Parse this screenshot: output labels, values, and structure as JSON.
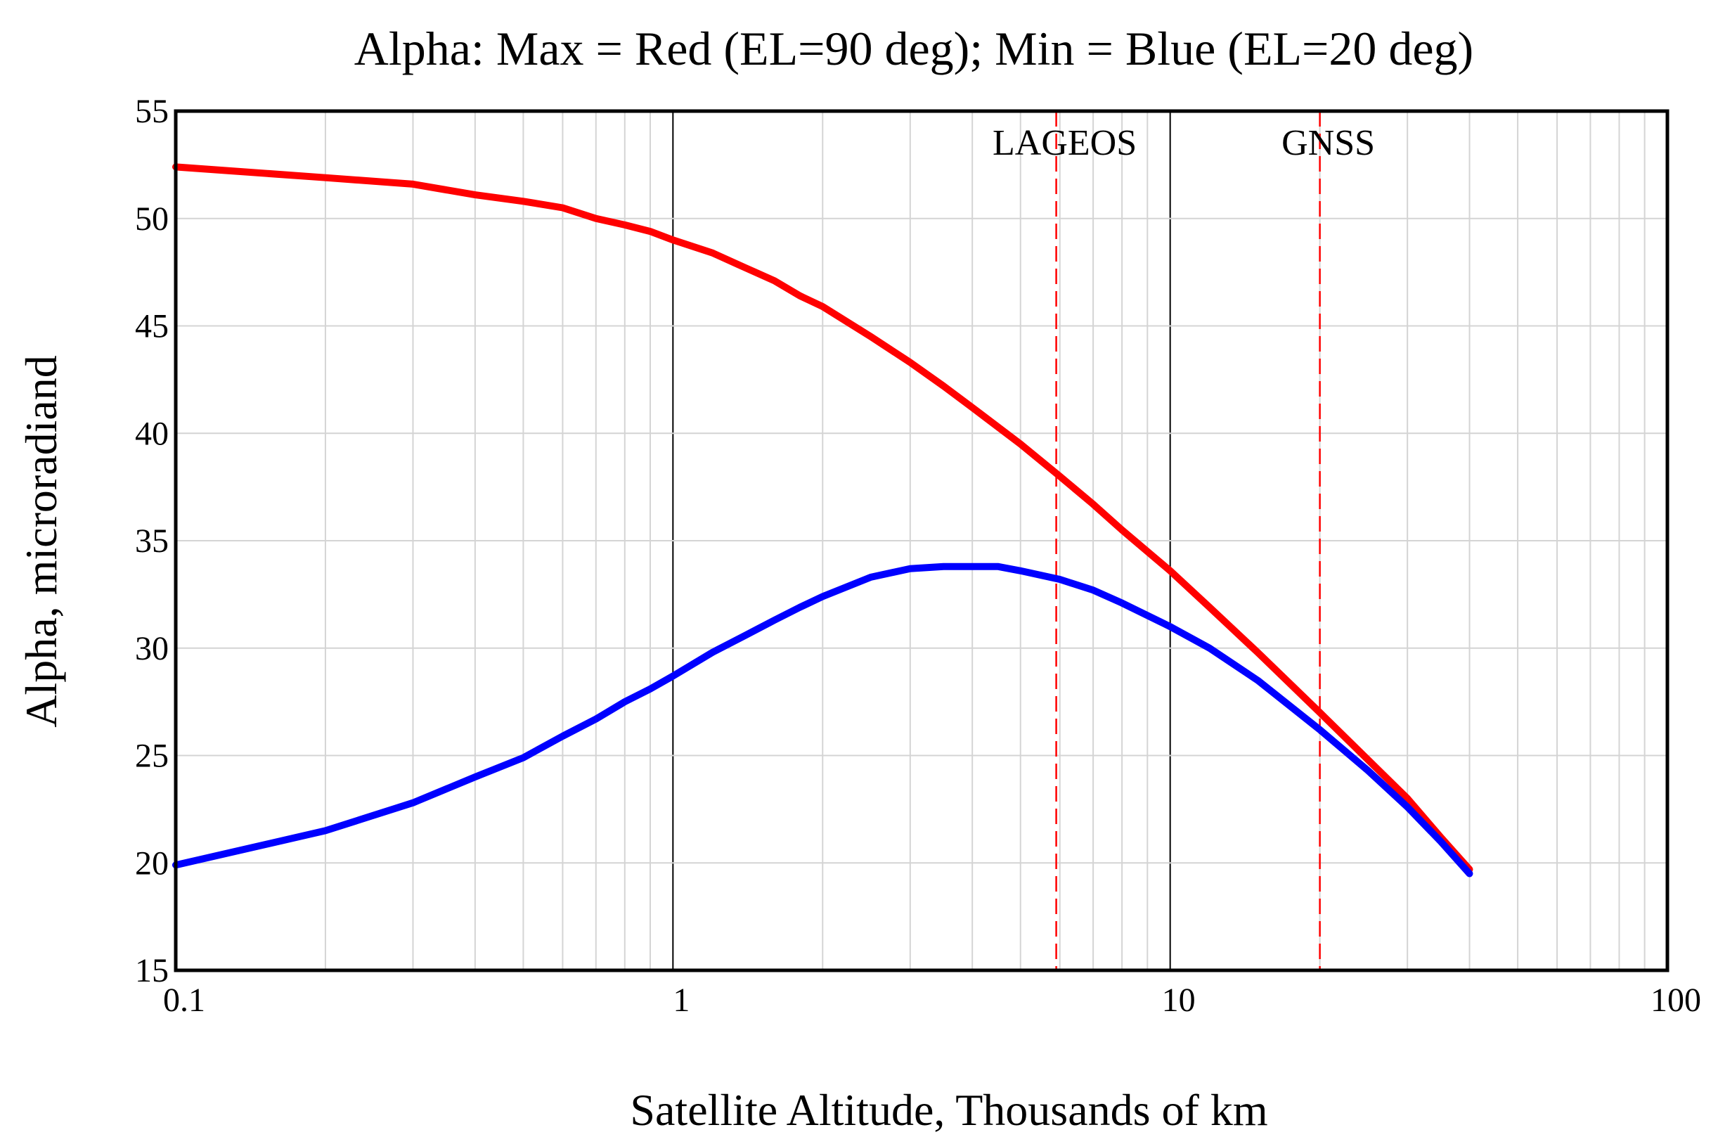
{
  "chart_data": {
    "type": "line",
    "title": "Alpha: Max = Red (EL=90 deg); Min = Blue (EL=20 deg)",
    "xlabel": "Satellite Altitude, Thousands of km",
    "ylabel": "Alpha, microradiand",
    "xscale": "log",
    "xlim": [
      0.1,
      100
    ],
    "ylim": [
      15,
      55
    ],
    "x_ticks": [
      {
        "value": 0.1,
        "label": "0.1"
      },
      {
        "value": 1,
        "label": "1"
      },
      {
        "value": 10,
        "label": "10"
      },
      {
        "value": 100,
        "label": "100"
      }
    ],
    "y_ticks": [
      {
        "value": 15,
        "label": "15"
      },
      {
        "value": 20,
        "label": "20"
      },
      {
        "value": 25,
        "label": "25"
      },
      {
        "value": 30,
        "label": "30"
      },
      {
        "value": 35,
        "label": "35"
      },
      {
        "value": 40,
        "label": "40"
      },
      {
        "value": 45,
        "label": "45"
      },
      {
        "value": 50,
        "label": "50"
      },
      {
        "value": 55,
        "label": "55"
      }
    ],
    "grid": true,
    "series": [
      {
        "name": "Max (EL=90 deg)",
        "color": "#ff0000",
        "x": [
          0.1,
          0.2,
          0.3,
          0.4,
          0.5,
          0.6,
          0.7,
          0.8,
          0.9,
          1.0,
          1.2,
          1.4,
          1.6,
          1.8,
          2.0,
          2.5,
          3.0,
          3.5,
          4.0,
          5.0,
          6.0,
          7.0,
          8.0,
          10,
          12,
          15,
          20,
          25,
          30,
          35,
          40
        ],
        "values": [
          52.4,
          51.9,
          51.6,
          51.1,
          50.8,
          50.5,
          50.0,
          49.7,
          49.4,
          49.0,
          48.4,
          47.7,
          47.1,
          46.4,
          45.9,
          44.5,
          43.3,
          42.2,
          41.2,
          39.5,
          38.0,
          36.7,
          35.5,
          33.6,
          31.9,
          29.8,
          27.0,
          24.8,
          23.0,
          21.2,
          19.7
        ]
      },
      {
        "name": "Min (EL=20 deg)",
        "color": "#0000ff",
        "x": [
          0.1,
          0.2,
          0.3,
          0.4,
          0.5,
          0.6,
          0.7,
          0.8,
          0.9,
          1.0,
          1.2,
          1.4,
          1.6,
          1.8,
          2.0,
          2.5,
          3.0,
          3.5,
          4.0,
          4.5,
          5.0,
          6.0,
          7.0,
          8.0,
          10,
          12,
          15,
          20,
          25,
          30,
          35,
          40
        ],
        "values": [
          19.9,
          21.5,
          22.8,
          24.0,
          24.9,
          25.9,
          26.7,
          27.5,
          28.1,
          28.7,
          29.8,
          30.6,
          31.3,
          31.9,
          32.4,
          33.3,
          33.7,
          33.8,
          33.8,
          33.8,
          33.6,
          33.2,
          32.7,
          32.1,
          31.0,
          30.0,
          28.5,
          26.2,
          24.3,
          22.6,
          21.0,
          19.5
        ]
      }
    ],
    "reference_lines": [
      {
        "label": "LAGEOS",
        "x": 5.9,
        "color": "#ff0000",
        "style": "dashed"
      },
      {
        "label": "GNSS",
        "x": 20,
        "color": "#ff0000",
        "style": "dashed"
      }
    ]
  }
}
